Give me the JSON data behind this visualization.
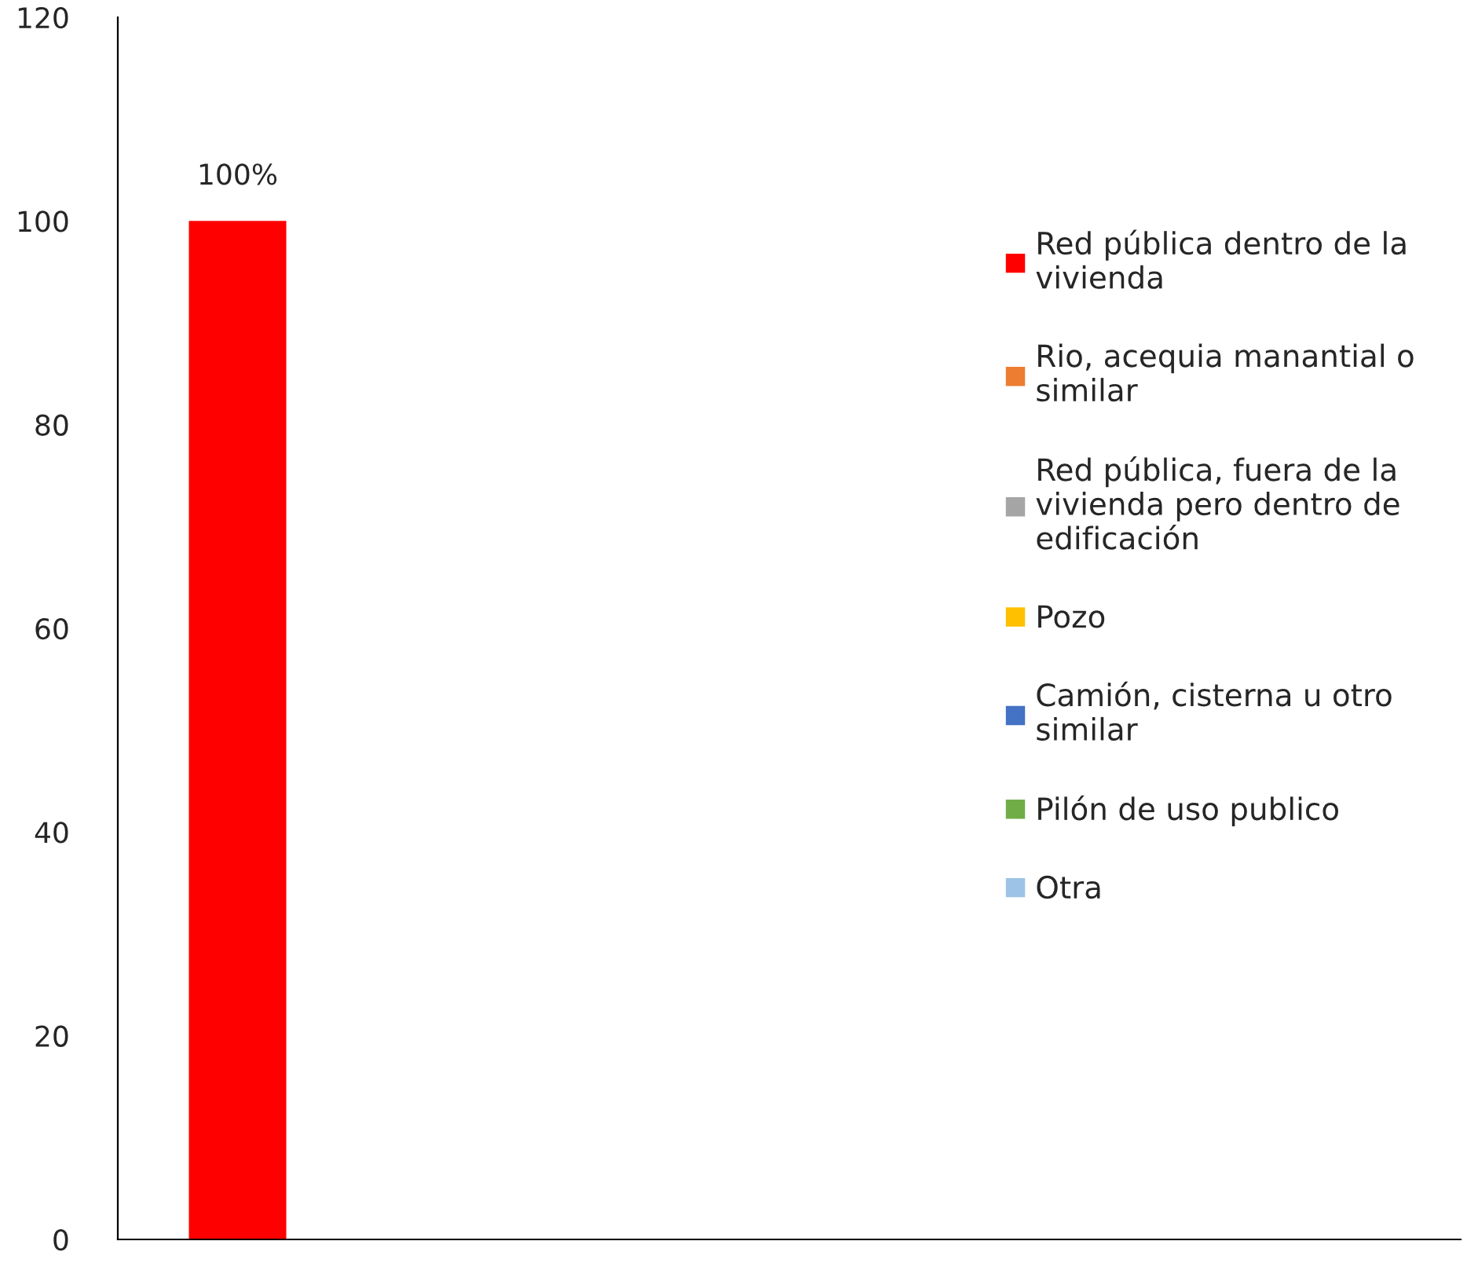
{
  "chart_data": {
    "type": "bar",
    "categories": [
      null
    ],
    "series": [
      {
        "name": "Red pública dentro de la vivienda",
        "color": "#ff0000",
        "values": [
          100
        ],
        "value_labels": [
          "100%"
        ]
      },
      {
        "name": "Rio, acequia manantial o similar",
        "color": "#ed7d31",
        "values": [
          0
        ],
        "value_labels": [
          null
        ]
      },
      {
        "name": "Red pública, fuera de la vivienda pero dentro de edificación",
        "color": "#a5a5a5",
        "values": [
          0
        ],
        "value_labels": [
          null
        ]
      },
      {
        "name": "Pozo",
        "color": "#ffc000",
        "values": [
          0
        ],
        "value_labels": [
          null
        ]
      },
      {
        "name": "Camión, cisterna u otro similar",
        "color": "#4472c4",
        "values": [
          0
        ],
        "value_labels": [
          null
        ]
      },
      {
        "name": "Pilón de uso publico",
        "color": "#70ad47",
        "values": [
          0
        ],
        "value_labels": [
          null
        ]
      },
      {
        "name": "Otra",
        "color": "#9dc3e6",
        "values": [
          0
        ],
        "value_labels": [
          null
        ]
      }
    ],
    "ylim": [
      0,
      120
    ],
    "yticks": [
      0,
      20,
      40,
      60,
      80,
      100,
      120
    ],
    "grid": false,
    "legend": "right"
  }
}
